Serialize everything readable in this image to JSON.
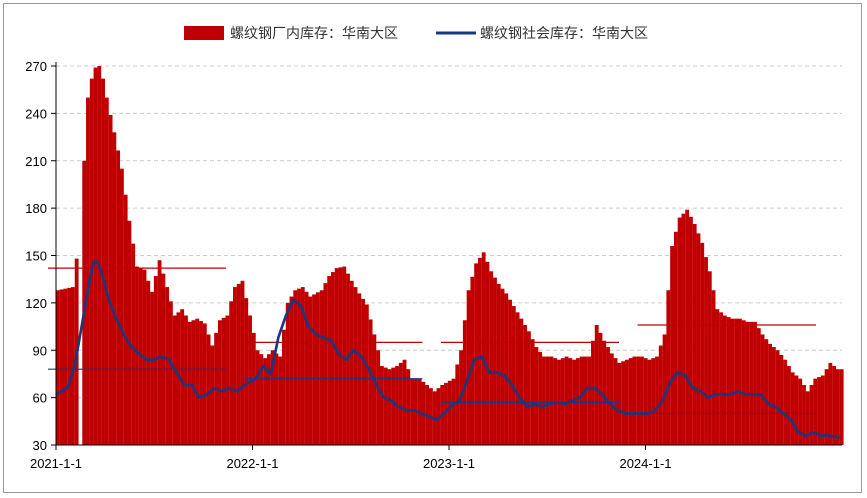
{
  "chart_data": {
    "type": "bar+line",
    "title": "",
    "xlabel": "",
    "ylabel": "",
    "ylim": [
      30,
      270
    ],
    "y_ticks": [
      30,
      60,
      90,
      120,
      150,
      180,
      210,
      240,
      270
    ],
    "x_tick_labels": [
      "2021-1-1",
      "2022-1-1",
      "2023-1-1",
      "2024-1-1"
    ],
    "grid": "horizontal dashed",
    "legend_position": "top",
    "colors": {
      "bar": "#c00000",
      "line": "#17377f",
      "avg_red": "#c00000",
      "avg_blue": "#17377f",
      "axis": "#000000",
      "grid": "#cccccc"
    },
    "series": [
      {
        "name": "螺纹钢厂内库存：华南大区",
        "type": "bar",
        "anchors": [
          [
            "2021-01-01",
            128
          ],
          [
            "2021-01-29",
            130
          ],
          [
            "2021-02-05",
            148
          ],
          [
            "2021-02-12",
            170
          ],
          [
            "2021-02-26",
            250
          ],
          [
            "2021-03-05",
            262
          ],
          [
            "2021-03-12",
            269
          ],
          [
            "2021-03-19",
            270
          ],
          [
            "2021-03-26",
            262
          ],
          [
            "2021-04-02",
            250
          ],
          [
            "2021-04-16",
            228
          ],
          [
            "2021-04-30",
            205
          ],
          [
            "2021-05-14",
            172
          ],
          [
            "2021-05-28",
            143
          ],
          [
            "2021-06-11",
            141
          ],
          [
            "2021-06-25",
            127
          ],
          [
            "2021-07-09",
            147
          ],
          [
            "2021-07-23",
            130
          ],
          [
            "2021-08-06",
            112
          ],
          [
            "2021-08-20",
            116
          ],
          [
            "2021-09-03",
            108
          ],
          [
            "2021-09-17",
            110
          ],
          [
            "2021-10-01",
            107
          ],
          [
            "2021-10-15",
            93
          ],
          [
            "2021-10-29",
            109
          ],
          [
            "2021-11-12",
            112
          ],
          [
            "2021-11-26",
            130
          ],
          [
            "2021-12-10",
            134
          ],
          [
            "2021-12-24",
            112
          ],
          [
            "2022-01-07",
            90
          ],
          [
            "2022-01-21",
            85
          ],
          [
            "2022-02-04",
            90
          ],
          [
            "2022-02-18",
            86
          ],
          [
            "2022-03-04",
            120
          ],
          [
            "2022-03-18",
            128
          ],
          [
            "2022-04-01",
            130
          ],
          [
            "2022-04-15",
            124
          ],
          [
            "2022-05-06",
            128
          ],
          [
            "2022-05-20",
            137
          ],
          [
            "2022-06-03",
            142
          ],
          [
            "2022-06-17",
            143
          ],
          [
            "2022-07-01",
            134
          ],
          [
            "2022-07-15",
            126
          ],
          [
            "2022-07-29",
            119
          ],
          [
            "2022-08-12",
            100
          ],
          [
            "2022-08-26",
            80
          ],
          [
            "2022-09-09",
            78
          ],
          [
            "2022-09-23",
            80
          ],
          [
            "2022-10-07",
            84
          ],
          [
            "2022-10-21",
            72
          ],
          [
            "2022-11-04",
            72
          ],
          [
            "2022-11-18",
            68
          ],
          [
            "2022-12-02",
            64
          ],
          [
            "2022-12-16",
            68
          ],
          [
            "2023-01-06",
            72
          ],
          [
            "2023-01-20",
            90
          ],
          [
            "2023-02-03",
            128
          ],
          [
            "2023-02-17",
            145
          ],
          [
            "2023-03-03",
            152
          ],
          [
            "2023-03-17",
            140
          ],
          [
            "2023-03-31",
            132
          ],
          [
            "2023-04-14",
            126
          ],
          [
            "2023-04-28",
            118
          ],
          [
            "2023-05-12",
            110
          ],
          [
            "2023-05-26",
            102
          ],
          [
            "2023-06-09",
            92
          ],
          [
            "2023-06-23",
            86
          ],
          [
            "2023-07-07",
            86
          ],
          [
            "2023-07-21",
            84
          ],
          [
            "2023-08-04",
            86
          ],
          [
            "2023-08-18",
            84
          ],
          [
            "2023-09-01",
            86
          ],
          [
            "2023-09-15",
            86
          ],
          [
            "2023-09-29",
            106
          ],
          [
            "2023-10-13",
            96
          ],
          [
            "2023-10-27",
            88
          ],
          [
            "2023-11-10",
            82
          ],
          [
            "2023-11-24",
            84
          ],
          [
            "2023-12-08",
            86
          ],
          [
            "2023-12-22",
            86
          ],
          [
            "2024-01-05",
            84
          ],
          [
            "2024-01-19",
            86
          ],
          [
            "2024-02-02",
            100
          ],
          [
            "2024-02-16",
            156
          ],
          [
            "2024-03-01",
            174
          ],
          [
            "2024-03-15",
            179
          ],
          [
            "2024-03-29",
            170
          ],
          [
            "2024-04-12",
            158
          ],
          [
            "2024-04-26",
            140
          ],
          [
            "2024-05-10",
            116
          ],
          [
            "2024-05-24",
            112
          ],
          [
            "2024-06-07",
            110
          ],
          [
            "2024-06-21",
            110
          ],
          [
            "2024-07-05",
            108
          ],
          [
            "2024-07-19",
            108
          ],
          [
            "2024-08-02",
            100
          ],
          [
            "2024-08-16",
            94
          ],
          [
            "2024-08-30",
            90
          ],
          [
            "2024-09-13",
            84
          ],
          [
            "2024-09-27",
            76
          ],
          [
            "2024-10-11",
            72
          ],
          [
            "2024-10-25",
            64
          ],
          [
            "2024-11-08",
            72
          ],
          [
            "2024-11-22",
            74
          ],
          [
            "2024-12-06",
            82
          ],
          [
            "2024-12-20",
            78
          ]
        ]
      },
      {
        "name": "螺纹钢社会库存：华南大区",
        "type": "line",
        "anchors": [
          [
            "2021-01-01",
            62
          ],
          [
            "2021-01-22",
            66
          ],
          [
            "2021-02-05",
            80
          ],
          [
            "2021-02-19",
            108
          ],
          [
            "2021-03-05",
            135
          ],
          [
            "2021-03-12",
            146
          ],
          [
            "2021-03-19",
            146
          ],
          [
            "2021-03-26",
            140
          ],
          [
            "2021-04-09",
            122
          ],
          [
            "2021-04-23",
            110
          ],
          [
            "2021-05-07",
            100
          ],
          [
            "2021-05-21",
            92
          ],
          [
            "2021-06-04",
            88
          ],
          [
            "2021-06-18",
            84
          ],
          [
            "2021-07-02",
            84
          ],
          [
            "2021-07-16",
            86
          ],
          [
            "2021-07-30",
            84
          ],
          [
            "2021-08-13",
            76
          ],
          [
            "2021-08-27",
            68
          ],
          [
            "2021-09-10",
            68
          ],
          [
            "2021-09-24",
            60
          ],
          [
            "2021-10-08",
            62
          ],
          [
            "2021-10-22",
            66
          ],
          [
            "2021-11-05",
            64
          ],
          [
            "2021-11-19",
            66
          ],
          [
            "2021-12-03",
            64
          ],
          [
            "2021-12-17",
            68
          ],
          [
            "2022-01-07",
            72
          ],
          [
            "2022-01-21",
            80
          ],
          [
            "2022-02-04",
            75
          ],
          [
            "2022-02-18",
            98
          ],
          [
            "2022-03-04",
            112
          ],
          [
            "2022-03-18",
            122
          ],
          [
            "2022-04-01",
            118
          ],
          [
            "2022-04-15",
            105
          ],
          [
            "2022-04-29",
            100
          ],
          [
            "2022-05-13",
            98
          ],
          [
            "2022-05-27",
            96
          ],
          [
            "2022-06-10",
            88
          ],
          [
            "2022-06-24",
            84
          ],
          [
            "2022-07-08",
            90
          ],
          [
            "2022-07-22",
            86
          ],
          [
            "2022-08-05",
            78
          ],
          [
            "2022-08-19",
            68
          ],
          [
            "2022-09-02",
            60
          ],
          [
            "2022-09-16",
            58
          ],
          [
            "2022-09-30",
            54
          ],
          [
            "2022-10-14",
            52
          ],
          [
            "2022-10-28",
            52
          ],
          [
            "2022-11-11",
            50
          ],
          [
            "2022-11-25",
            48
          ],
          [
            "2022-12-09",
            46
          ],
          [
            "2022-12-23",
            50
          ],
          [
            "2023-01-06",
            55
          ],
          [
            "2023-01-20",
            58
          ],
          [
            "2023-02-03",
            70
          ],
          [
            "2023-02-17",
            84
          ],
          [
            "2023-03-03",
            86
          ],
          [
            "2023-03-17",
            76
          ],
          [
            "2023-03-31",
            76
          ],
          [
            "2023-04-14",
            74
          ],
          [
            "2023-04-28",
            68
          ],
          [
            "2023-05-12",
            60
          ],
          [
            "2023-05-26",
            54
          ],
          [
            "2023-06-09",
            56
          ],
          [
            "2023-06-23",
            54
          ],
          [
            "2023-07-07",
            56
          ],
          [
            "2023-07-21",
            57
          ],
          [
            "2023-08-04",
            56
          ],
          [
            "2023-08-18",
            58
          ],
          [
            "2023-09-01",
            60
          ],
          [
            "2023-09-15",
            66
          ],
          [
            "2023-09-29",
            66
          ],
          [
            "2023-10-13",
            62
          ],
          [
            "2023-10-27",
            56
          ],
          [
            "2023-11-10",
            52
          ],
          [
            "2023-11-24",
            50
          ],
          [
            "2023-12-08",
            50
          ],
          [
            "2023-12-22",
            50
          ],
          [
            "2024-01-05",
            50
          ],
          [
            "2024-01-19",
            52
          ],
          [
            "2024-02-02",
            58
          ],
          [
            "2024-02-16",
            70
          ],
          [
            "2024-03-01",
            76
          ],
          [
            "2024-03-15",
            74
          ],
          [
            "2024-03-29",
            66
          ],
          [
            "2024-04-12",
            64
          ],
          [
            "2024-04-26",
            60
          ],
          [
            "2024-05-10",
            62
          ],
          [
            "2024-05-24",
            62
          ],
          [
            "2024-06-07",
            62
          ],
          [
            "2024-06-21",
            64
          ],
          [
            "2024-07-05",
            62
          ],
          [
            "2024-07-19",
            62
          ],
          [
            "2024-08-02",
            62
          ],
          [
            "2024-08-16",
            56
          ],
          [
            "2024-08-30",
            54
          ],
          [
            "2024-09-13",
            50
          ],
          [
            "2024-09-27",
            46
          ],
          [
            "2024-10-11",
            38
          ],
          [
            "2024-10-25",
            36
          ],
          [
            "2024-11-08",
            38
          ],
          [
            "2024-11-22",
            36
          ],
          [
            "2024-12-06",
            36
          ],
          [
            "2024-12-20",
            35
          ]
        ]
      }
    ],
    "gap_date": "2021-02-12",
    "average_lines_red": [
      {
        "from": "2021-01-01",
        "to": "2021-12-31",
        "value": 142
      },
      {
        "from": "2022-01-01",
        "to": "2022-12-31",
        "value": 95
      },
      {
        "from": "2023-01-01",
        "to": "2023-12-31",
        "value": 95
      },
      {
        "from": "2024-01-01",
        "to": "2024-12-31",
        "value": 106
      }
    ],
    "average_lines_blue": [
      {
        "from": "2021-01-01",
        "to": "2021-12-31",
        "value": 78
      },
      {
        "from": "2022-01-01",
        "to": "2022-12-31",
        "value": 72
      },
      {
        "from": "2023-01-01",
        "to": "2023-12-31",
        "value": 57
      },
      {
        "from": "2024-01-01",
        "to": "2024-12-31",
        "value": 50
      }
    ]
  }
}
